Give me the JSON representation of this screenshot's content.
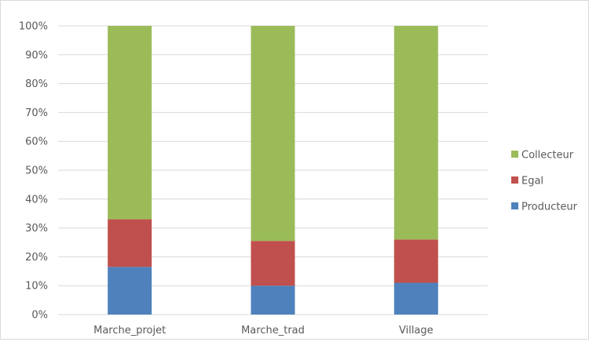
{
  "chart_data": {
    "type": "bar",
    "stacked": true,
    "normalized_percent": true,
    "categories": [
      "Marche_projet",
      "Marche_trad",
      "Village"
    ],
    "series": [
      {
        "name": "Producteur",
        "color": "#4f81bd",
        "values": [
          16.5,
          10,
          11
        ]
      },
      {
        "name": "Egal",
        "color": "#c0504d",
        "values": [
          16.5,
          15.5,
          15
        ]
      },
      {
        "name": "Collecteur",
        "color": "#9bbb59",
        "values": [
          67,
          74.5,
          74
        ]
      }
    ],
    "yticks": [
      "0%",
      "10%",
      "20%",
      "30%",
      "40%",
      "50%",
      "60%",
      "70%",
      "80%",
      "90%",
      "100%"
    ],
    "ylim": [
      0,
      100
    ],
    "grid": true,
    "legend_position": "right",
    "legend_order": [
      "Collecteur",
      "Egal",
      "Producteur"
    ],
    "gridline_color": "#d9d9d9"
  }
}
